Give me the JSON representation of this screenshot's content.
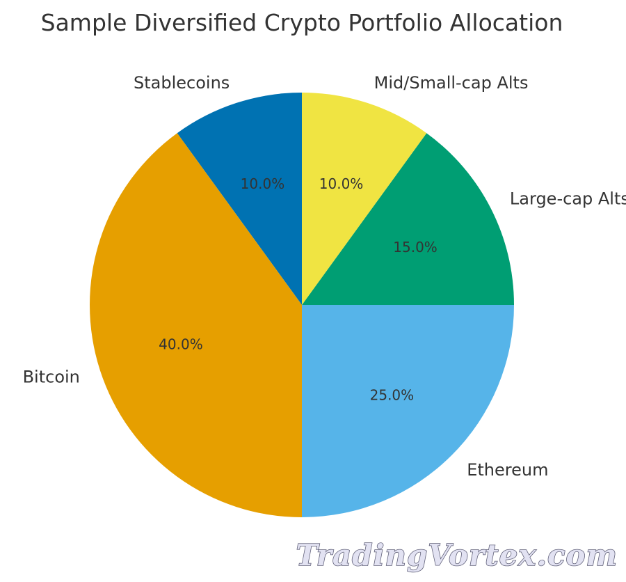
{
  "chart_data": {
    "type": "pie",
    "title": "Sample Diversified Crypto Portfolio Allocation",
    "start_angle_deg": 90,
    "direction": "counterclockwise",
    "slices": [
      {
        "label": "Stablecoins",
        "value": 10,
        "pct_label": "10.0%",
        "color": "#0072b2"
      },
      {
        "label": "Bitcoin",
        "value": 40,
        "pct_label": "40.0%",
        "color": "#e69f00"
      },
      {
        "label": "Ethereum",
        "value": 25,
        "pct_label": "25.0%",
        "color": "#56b4e9"
      },
      {
        "label": "Large-cap Alts",
        "value": 15,
        "pct_label": "15.0%",
        "color": "#009e73"
      },
      {
        "label": "Mid/Small-cap Alts",
        "value": 10,
        "pct_label": "10.0%",
        "color": "#f0e442"
      }
    ]
  },
  "watermark": {
    "text": "TradingVortex.com"
  }
}
